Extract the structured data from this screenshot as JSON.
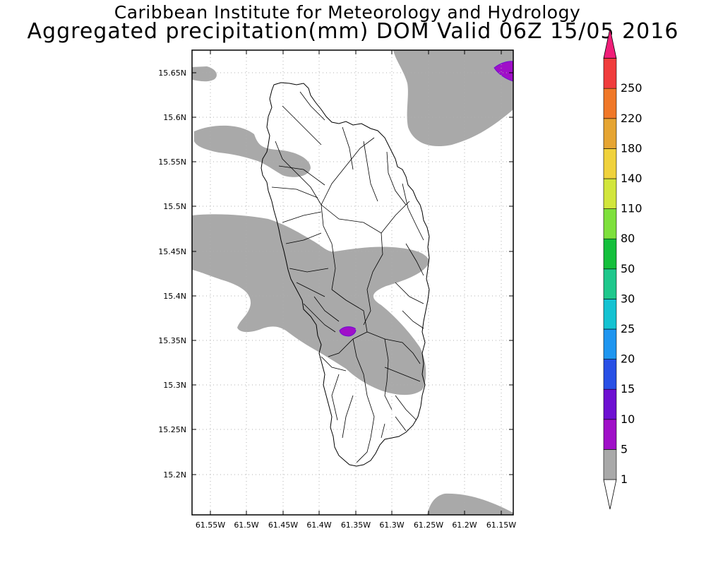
{
  "titles": {
    "line1": "Caribbean Institute for Meteorology and Hydrology",
    "line2": "Aggregated precipitation(mm) DOM Valid 06Z 15/05 2016"
  },
  "map": {
    "lat_ticks": [
      "15.65N",
      "15.6N",
      "15.55N",
      "15.5N",
      "15.45N",
      "15.4N",
      "15.35N",
      "15.3N",
      "15.25N",
      "15.2N"
    ],
    "lon_ticks": [
      "61.55W",
      "61.5W",
      "61.45W",
      "61.4W",
      "61.35W",
      "61.3W",
      "61.25W",
      "61.2W",
      "61.15W"
    ],
    "lat_range": [
      15.155,
      15.68
    ],
    "lon_range": [
      -61.574,
      -61.136
    ],
    "grid": true
  },
  "colorbar": {
    "unit": "mm",
    "levels": [
      "1",
      "5",
      "10",
      "15",
      "20",
      "25",
      "30",
      "50",
      "80",
      "110",
      "140",
      "180",
      "220",
      "250"
    ],
    "colors": [
      "#a9a9a9",
      "#a00fc8",
      "#6e0fd2",
      "#2850e6",
      "#1e96f0",
      "#14c3d2",
      "#1ec88c",
      "#14c03c",
      "#7ee03c",
      "#d2e63c",
      "#f0d23c",
      "#e6a532",
      "#f07828",
      "#f03c3c"
    ],
    "top_color": "#f01e78",
    "bottom_color": "#ffffff"
  }
}
